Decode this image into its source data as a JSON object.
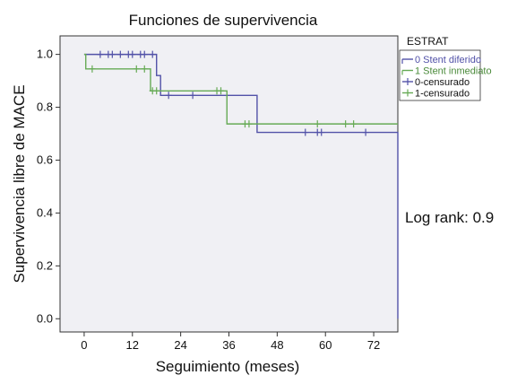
{
  "chart_data": {
    "type": "line",
    "title": "Funciones de supervivencia",
    "xlabel": "Seguimiento (meses)",
    "ylabel": "Supervivencia libre de MACE",
    "xlim": [
      -6,
      78
    ],
    "ylim": [
      -0.05,
      1.07
    ],
    "xticks": [
      0,
      12,
      24,
      36,
      48,
      60,
      72
    ],
    "yticks": [
      0.0,
      0.2,
      0.4,
      0.6,
      0.8,
      1.0
    ],
    "ytick_labels": [
      "0.0",
      "0.2",
      "0.4",
      "0.6",
      "0.8",
      "1.0"
    ],
    "grid": false,
    "legend": {
      "title": "ESTRAT",
      "placement": "right-top",
      "entries": [
        {
          "label": "0 Stent diferido",
          "color": "#5252a8",
          "text_color": "#5252a8",
          "marker": "line"
        },
        {
          "label": "1 Stent inmediato",
          "color": "#66aa55",
          "text_color": "#4a8a3a",
          "marker": "line"
        },
        {
          "label": "0-censurado",
          "color": "#5252a8",
          "text_color": "#111111",
          "marker": "plus"
        },
        {
          "label": "1-censurado",
          "color": "#66aa55",
          "text_color": "#111111",
          "marker": "plus"
        }
      ]
    },
    "annotation": "Log rank: 0.9",
    "series": [
      {
        "name": "0 Stent diferido",
        "color": "#5252a8",
        "steps": [
          [
            0,
            1.0
          ],
          [
            18,
            0.92
          ],
          [
            19,
            0.845
          ],
          [
            43,
            0.705
          ],
          [
            78,
            0.705
          ],
          [
            78,
            0.0
          ]
        ],
        "censored": [
          [
            4,
            1.0
          ],
          [
            6,
            1.0
          ],
          [
            7,
            1.0
          ],
          [
            9,
            1.0
          ],
          [
            11,
            1.0
          ],
          [
            12,
            1.0
          ],
          [
            14,
            1.0
          ],
          [
            15,
            1.0
          ],
          [
            17,
            1.0
          ],
          [
            21,
            0.845
          ],
          [
            27,
            0.845
          ],
          [
            55,
            0.705
          ],
          [
            58,
            0.705
          ],
          [
            59,
            0.705
          ],
          [
            70,
            0.705
          ]
        ]
      },
      {
        "name": "1 Stent inmediato",
        "color": "#66aa55",
        "steps": [
          [
            0,
            1.0
          ],
          [
            0.4,
            0.945
          ],
          [
            16.5,
            0.862
          ],
          [
            35.5,
            0.737
          ],
          [
            78,
            0.737
          ]
        ],
        "censored": [
          [
            2,
            0.945
          ],
          [
            13,
            0.945
          ],
          [
            15,
            0.945
          ],
          [
            17,
            0.862
          ],
          [
            18,
            0.862
          ],
          [
            33,
            0.862
          ],
          [
            34,
            0.862
          ],
          [
            40,
            0.737
          ],
          [
            41,
            0.737
          ],
          [
            58,
            0.737
          ],
          [
            65,
            0.737
          ],
          [
            67,
            0.737
          ]
        ]
      }
    ]
  }
}
